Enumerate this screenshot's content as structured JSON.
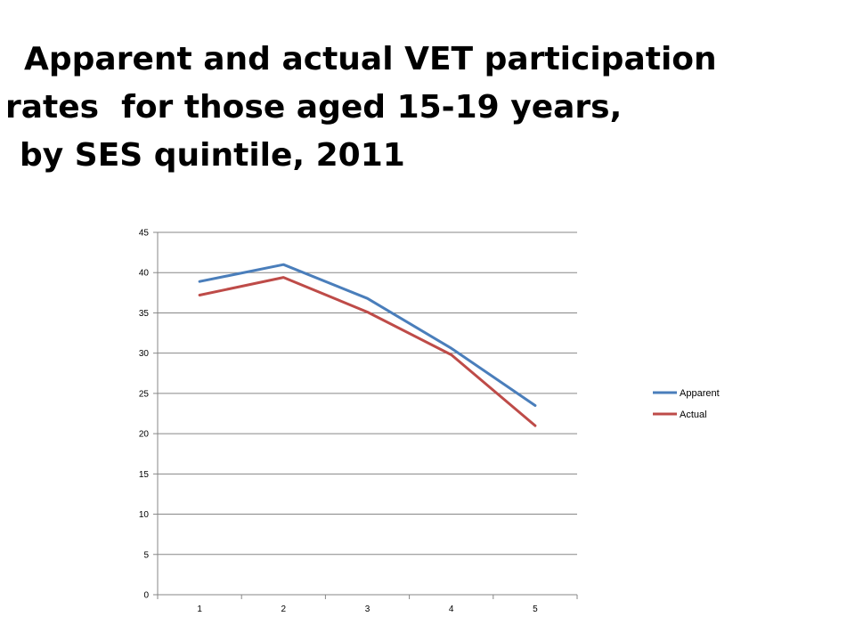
{
  "title_lines": [
    "Apparent and actual VET participation",
    "rates  for those aged 15-19 years,",
    "by SES quintile, 2011"
  ],
  "chart_data": {
    "type": "line",
    "title": "Apparent and actual VET participation rates  for those aged 15-19 years, by SES quintile, 2011",
    "xlabel": "",
    "ylabel": "",
    "categories": [
      "1",
      "2",
      "3",
      "4",
      "5"
    ],
    "ylim": [
      0,
      45
    ],
    "yticks": [
      "0",
      "5",
      "10",
      "15",
      "20",
      "25",
      "30",
      "35",
      "40",
      "45"
    ],
    "grid": true,
    "legend_position": "right",
    "series": [
      {
        "name": "Apparent",
        "color": "#4a7ebb",
        "values": [
          38.9,
          41.0,
          36.8,
          30.6,
          23.5
        ]
      },
      {
        "name": "Actual",
        "color": "#be4b48",
        "values": [
          37.2,
          39.4,
          35.1,
          29.8,
          21.0
        ]
      }
    ]
  }
}
